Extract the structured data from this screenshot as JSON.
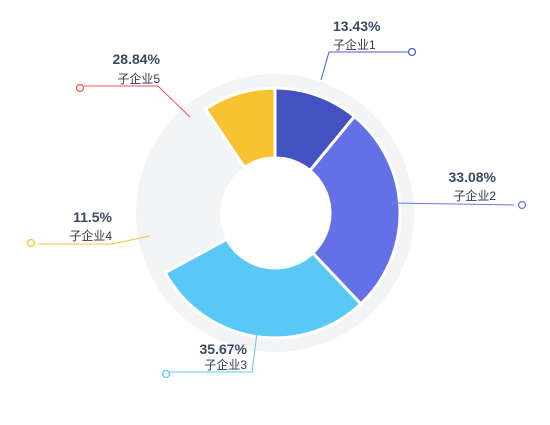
{
  "chart_data": {
    "type": "pie",
    "subtype": "donut",
    "categories": [
      "子企业1",
      "子企业2",
      "子企业3",
      "子企业4",
      "子企业5"
    ],
    "values": [
      13.43,
      33.08,
      35.67,
      11.5,
      28.84
    ],
    "value_labels": [
      "13.43%",
      "33.08%",
      "35.67%",
      "11.5%",
      "28.84%"
    ],
    "colors": [
      "#4352c0",
      "#6470e8",
      "#5ac8f6",
      "#f7c230",
      "#fb5152"
    ],
    "line_colors": [
      "#4c5bc9",
      "#6a78e8",
      "#5ac8f6",
      "#f7c230",
      "#fb5152"
    ],
    "hidden_segment": "子企业5",
    "legend": "none"
  }
}
